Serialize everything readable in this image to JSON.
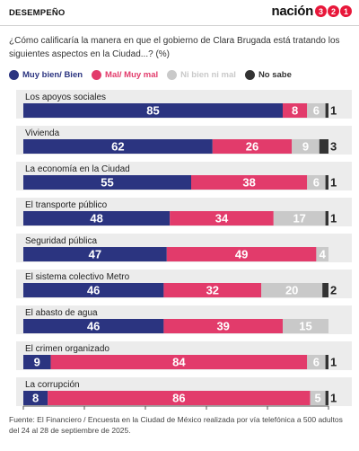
{
  "header": {
    "section": "DESEMPEÑO",
    "brand_word": "nación",
    "brand_digits": [
      "3",
      "2",
      "1"
    ]
  },
  "question": "¿Cómo calificaría la manera en que el gobierno de Clara Brugada está tratando los siguientes aspectos en la Ciudad...? (%)",
  "footer": "Fuente: El Financiero / Encuesta en la Ciudad de México realizada por vía telefónica a 500 adultos del 24 al 28 de septiembre de 2025.",
  "colors": {
    "good": "#2b3480",
    "bad": "#e23b6b",
    "neutral": "#c9c9c9",
    "nosabe": "#333333",
    "background": "#ffffff",
    "band": "#ececec"
  },
  "chart_data": {
    "type": "bar",
    "orientation": "horizontal",
    "stacked": true,
    "xlim": [
      0,
      100
    ],
    "xticks": [
      "0",
      "20",
      "40",
      "60",
      "80",
      "100"
    ],
    "categories": [
      "Los apoyos sociales",
      "Vivienda",
      "La economía en la Ciudad",
      "El transporte público",
      "Seguridad pública",
      "El sistema colectivo Metro",
      "El abasto de agua",
      "El crimen organizado",
      "La corrupción"
    ],
    "series": [
      {
        "name": "Muy bien/ Bien",
        "color": "#2b3480",
        "values": [
          85,
          62,
          55,
          48,
          47,
          46,
          46,
          9,
          8
        ]
      },
      {
        "name": "Mal/ Muy mal",
        "color": "#e23b6b",
        "values": [
          8,
          26,
          38,
          34,
          49,
          32,
          39,
          84,
          86
        ]
      },
      {
        "name": "Ni bien ni mal",
        "color": "#c9c9c9",
        "values": [
          6,
          9,
          6,
          17,
          4,
          20,
          15,
          6,
          5
        ]
      },
      {
        "name": "No sabe",
        "color": "#333333",
        "values": [
          1,
          3,
          1,
          1,
          null,
          2,
          null,
          1,
          1
        ]
      }
    ]
  }
}
